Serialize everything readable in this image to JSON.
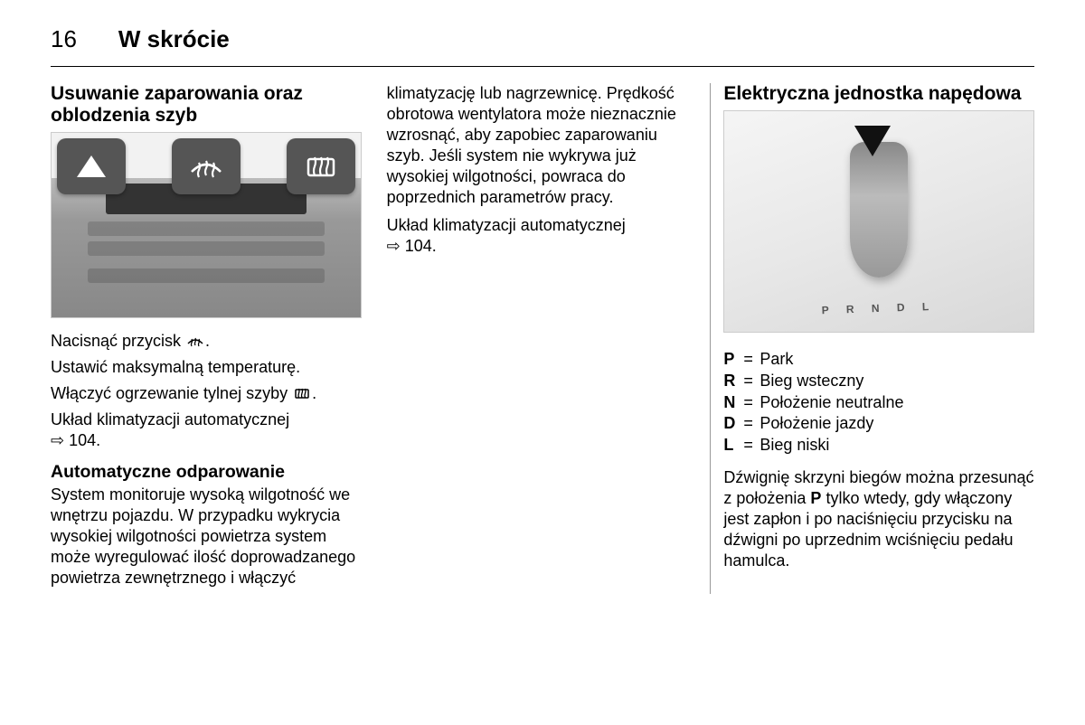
{
  "page_number": "16",
  "chapter_title": "W skrócie",
  "col1": {
    "heading": "Usuwanie zaparowania oraz oblodzenia szyb",
    "p1_a": "Nacisnąć przycisk ",
    "p1_b": ".",
    "p2": "Ustawić maksymalną temperaturę.",
    "p3_a": "Włączyć ogrzewanie tylnej szyby ",
    "p3_b": ".",
    "p4": "Układ klimatyzacji automatycznej",
    "p4_ref": "⇨ 104.",
    "sub_heading": "Automatyczne odparowanie",
    "p5": "System monitoruje wysoką wilgotność we wnętrzu pojazdu. W przypadku wykrycia wysokiej wilgotności powietrza system może wyregulować ilość doprowadzanego powietrza zewnętrznego i włączyć"
  },
  "col2": {
    "p1": "klimatyzację lub nagrzewnicę. Prędkość obrotowa wentylatora może nieznacznie wzrosnąć, aby zapobiec zaparowaniu szyb. Jeśli system nie wykrywa już wysokiej wilgotności, powraca do poprzednich parametrów pracy.",
    "p2": "Układ klimatyzacji automatycznej",
    "p2_ref": "⇨ 104."
  },
  "col3": {
    "heading": "Elektryczna jednostka napędowa",
    "gears": [
      {
        "k": "P",
        "v": "Park"
      },
      {
        "k": "R",
        "v": "Bieg wsteczny"
      },
      {
        "k": "N",
        "v": "Położenie neutralne"
      },
      {
        "k": "D",
        "v": "Położenie jazdy"
      },
      {
        "k": "L",
        "v": "Bieg niski"
      }
    ],
    "p1_a": "Dźwignię skrzyni biegów można przesunąć z położenia ",
    "p1_bold": "P",
    "p1_b": " tylko wtedy, gdy włączony jest zapłon i po naciśnięciu przycisku na dźwigni po uprzednim wciśnięciu pedału hamulca."
  },
  "icons": {
    "front_defrost_title": "front-defrost",
    "rear_defrost_title": "rear-defrost"
  },
  "colors": {
    "text": "#000000",
    "rule": "#000000",
    "divider": "#999999",
    "placeholder_bg": "#f2f2f2",
    "callout_bg": "#555555"
  }
}
